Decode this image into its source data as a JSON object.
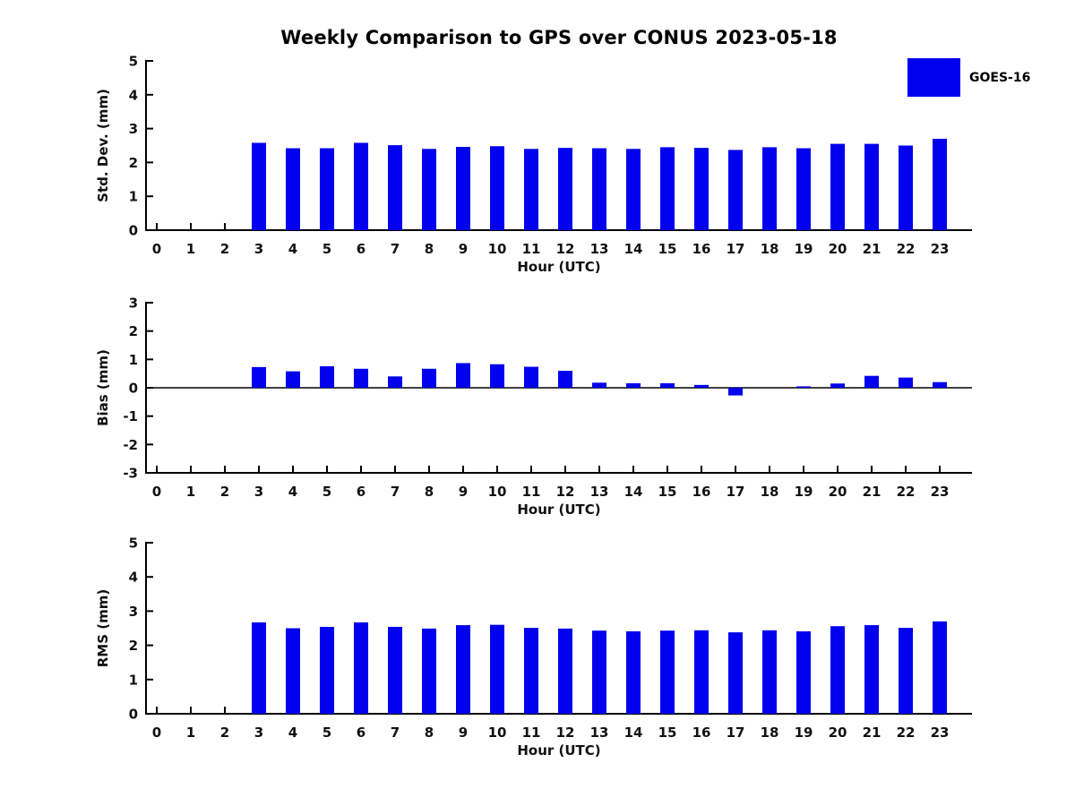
{
  "title": "Weekly Comparison to GPS over CONUS 2023-05-18",
  "legend": {
    "label": "GOES-16",
    "color": "#0000ee",
    "position": "outside-top-right"
  },
  "chart_data": [
    {
      "type": "bar",
      "name": "std-dev",
      "title": "",
      "xlabel": "Hour (UTC)",
      "ylabel": "Std. Dev. (mm)",
      "ylim": [
        0,
        5
      ],
      "yticks": [
        0,
        1,
        2,
        3,
        4,
        5
      ],
      "grid": false,
      "categories": [
        0,
        1,
        2,
        3,
        4,
        5,
        6,
        7,
        8,
        9,
        10,
        11,
        12,
        13,
        14,
        15,
        16,
        17,
        18,
        19,
        20,
        21,
        22,
        23
      ],
      "series": [
        {
          "name": "GOES-16",
          "color": "#0000ee",
          "values": [
            null,
            null,
            null,
            2.58,
            2.42,
            2.42,
            2.58,
            2.51,
            2.4,
            2.46,
            2.48,
            2.4,
            2.43,
            2.42,
            2.4,
            2.45,
            2.43,
            2.37,
            2.45,
            2.42,
            2.55,
            2.55,
            2.5,
            2.7
          ]
        }
      ]
    },
    {
      "type": "bar",
      "name": "bias",
      "title": "",
      "xlabel": "Hour (UTC)",
      "ylabel": "Bias (mm)",
      "ylim": [
        -3,
        3
      ],
      "yticks": [
        -3,
        -2,
        -1,
        0,
        1,
        2,
        3
      ],
      "zero_line": true,
      "grid": false,
      "categories": [
        0,
        1,
        2,
        3,
        4,
        5,
        6,
        7,
        8,
        9,
        10,
        11,
        12,
        13,
        14,
        15,
        16,
        17,
        18,
        19,
        20,
        21,
        22,
        23
      ],
      "series": [
        {
          "name": "GOES-16",
          "color": "#0000ee",
          "values": [
            null,
            null,
            null,
            0.73,
            0.58,
            0.76,
            0.67,
            0.4,
            0.67,
            0.87,
            0.83,
            0.74,
            0.6,
            0.18,
            0.16,
            0.16,
            0.1,
            -0.27,
            0.0,
            0.05,
            0.15,
            0.42,
            0.36,
            0.2
          ]
        }
      ]
    },
    {
      "type": "bar",
      "name": "rms",
      "title": "",
      "xlabel": "Hour (UTC)",
      "ylabel": "RMS (mm)",
      "ylim": [
        0,
        5
      ],
      "yticks": [
        0,
        1,
        2,
        3,
        4,
        5
      ],
      "grid": false,
      "categories": [
        0,
        1,
        2,
        3,
        4,
        5,
        6,
        7,
        8,
        9,
        10,
        11,
        12,
        13,
        14,
        15,
        16,
        17,
        18,
        19,
        20,
        21,
        22,
        23
      ],
      "series": [
        {
          "name": "GOES-16",
          "color": "#0000ee",
          "values": [
            null,
            null,
            null,
            2.67,
            2.5,
            2.54,
            2.67,
            2.54,
            2.49,
            2.59,
            2.6,
            2.51,
            2.49,
            2.43,
            2.41,
            2.43,
            2.44,
            2.38,
            2.44,
            2.41,
            2.56,
            2.59,
            2.51,
            2.7
          ]
        }
      ]
    }
  ]
}
